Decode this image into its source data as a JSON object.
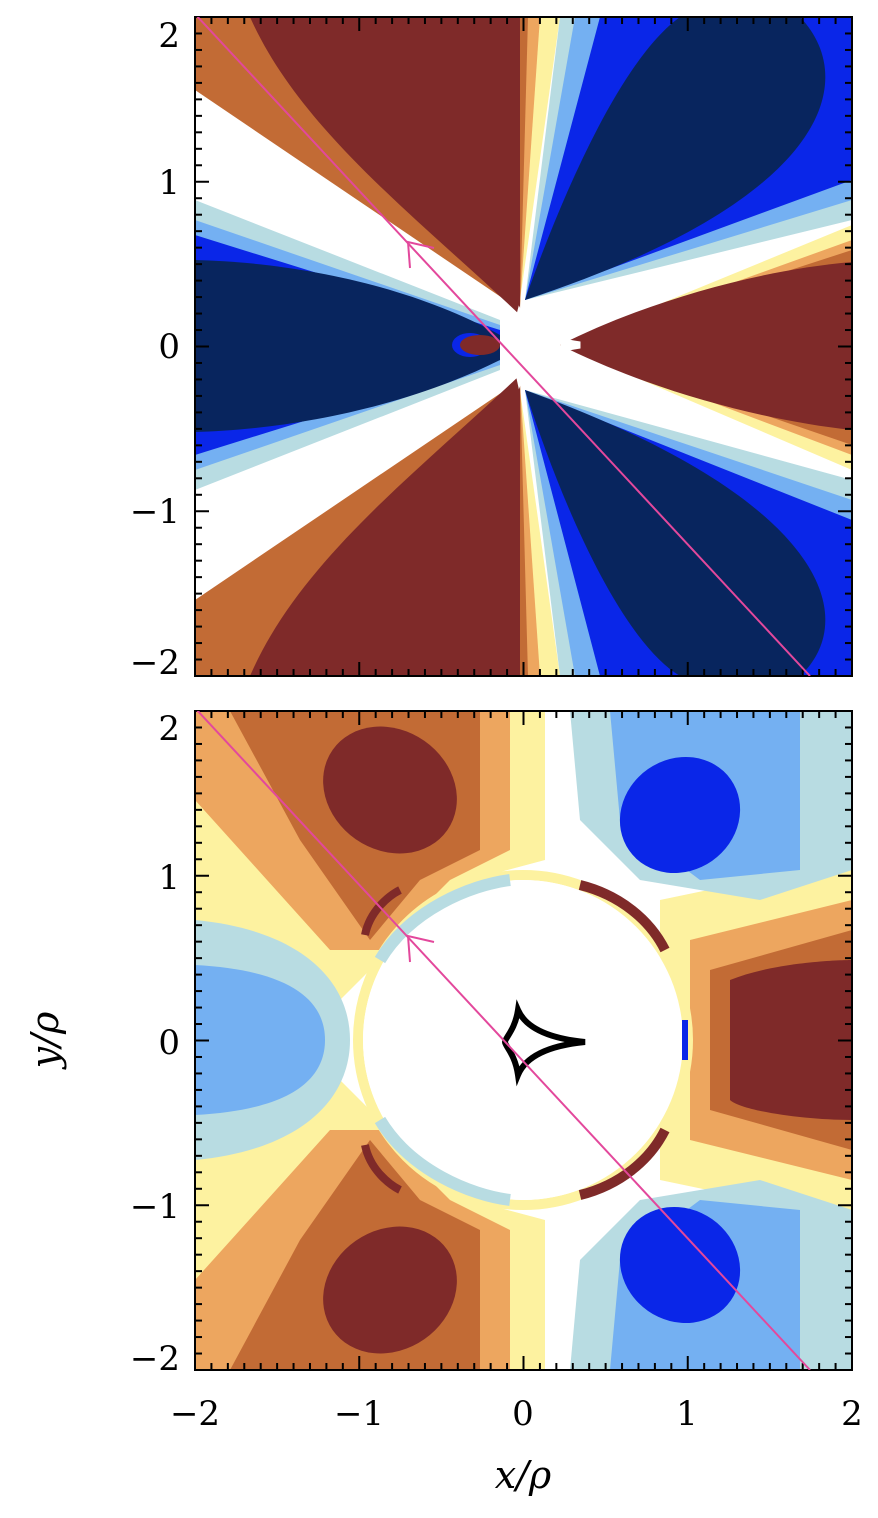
{
  "chart_data": [
    {
      "type": "heatmap",
      "title": "",
      "xlabel": "",
      "ylabel": "",
      "xlim": [
        -2,
        2
      ],
      "ylim": [
        -2,
        2
      ],
      "x_ticks": [
        "−2",
        "−1",
        "0",
        "1",
        "2"
      ],
      "y_ticks": [
        "−2",
        "−1",
        "0",
        "1",
        "2"
      ],
      "colormap": [
        "#08255e",
        "#0a26e8",
        "#74b0f2",
        "#b8dce2",
        "#ffffff",
        "#fdf2a0",
        "#eda65f",
        "#c26b35",
        "#7f2a29"
      ],
      "caustic_color": "#ffffff",
      "trajectory": {
        "from": [
          -2.0,
          2.05
        ],
        "to": [
          1.75,
          -2.0
        ],
        "arrow_at": [
          -0.72,
          0.64
        ],
        "color": "#e3489c"
      }
    },
    {
      "type": "heatmap",
      "title": "",
      "xlabel": "x/ρ",
      "ylabel": "y/ρ",
      "xlim": [
        -2,
        2
      ],
      "ylim": [
        -2,
        2
      ],
      "x_ticks": [
        "−2",
        "−1",
        "0",
        "1",
        "2"
      ],
      "y_ticks": [
        "−2",
        "−1",
        "0",
        "1",
        "2"
      ],
      "colormap": [
        "#0a26e8",
        "#74b0f2",
        "#b8dce2",
        "#ffffff",
        "#fdf2a0",
        "#eda65f",
        "#c26b35",
        "#7f2a29"
      ],
      "caustic_color": "#000000",
      "trajectory": {
        "from": [
          -2.0,
          2.05
        ],
        "to": [
          1.75,
          -2.0
        ],
        "arrow_at": [
          -0.72,
          0.64
        ],
        "color": "#e3489c"
      }
    }
  ]
}
